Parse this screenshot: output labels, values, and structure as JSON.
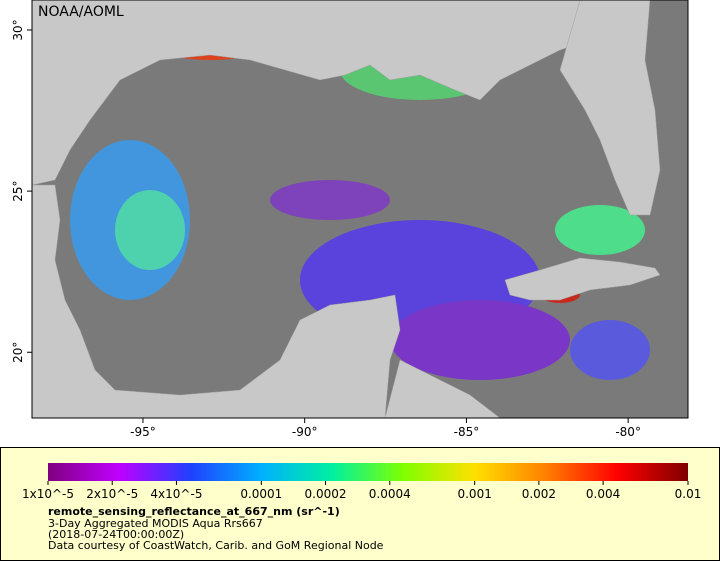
{
  "map": {
    "watermark": "NOAA/AOML",
    "xlim": [
      -98.43,
      -78.15
    ],
    "ylim": [
      17.96,
      30.93
    ],
    "xticks": [
      {
        "value": -95,
        "label": "-95°"
      },
      {
        "value": -90,
        "label": "-90°"
      },
      {
        "value": -85,
        "label": "-85°"
      },
      {
        "value": -80,
        "label": "-80°"
      }
    ],
    "yticks": [
      {
        "value": 20,
        "label": "20°"
      },
      {
        "value": 25,
        "label": "25°"
      },
      {
        "value": 30,
        "label": "30°"
      }
    ]
  },
  "colorbar": {
    "scale": "log",
    "lim": [
      1e-05,
      0.01
    ],
    "colors": [
      "#7f007f",
      "#c000ff",
      "#2040ff",
      "#00b0ff",
      "#00f0a0",
      "#80ff00",
      "#ffe000",
      "#ff8000",
      "#ff0000",
      "#800000"
    ],
    "ticks": [
      {
        "value": 1e-05,
        "label": "1x10^-5"
      },
      {
        "value": 2e-05,
        "label": "2x10^-5"
      },
      {
        "value": 4e-05,
        "label": "4x10^-5"
      },
      {
        "value": 0.0001,
        "label": "0.0001"
      },
      {
        "value": 0.0002,
        "label": "0.0002"
      },
      {
        "value": 0.0004,
        "label": "0.0004"
      },
      {
        "value": 0.001,
        "label": "0.001"
      },
      {
        "value": 0.002,
        "label": "0.002"
      },
      {
        "value": 0.004,
        "label": "0.004"
      },
      {
        "value": 0.01,
        "label": "0.01"
      }
    ]
  },
  "legend": {
    "title": "remote_sensing_reflectance_at_667_nm (sr^-1)",
    "lines": [
      "3-Day Aggregated MODIS Aqua Rrs667",
      "(2018-07-24T00:00:00Z)",
      "Data courtesy of CoastWatch, Carib. and GoM Regional Node"
    ]
  }
}
